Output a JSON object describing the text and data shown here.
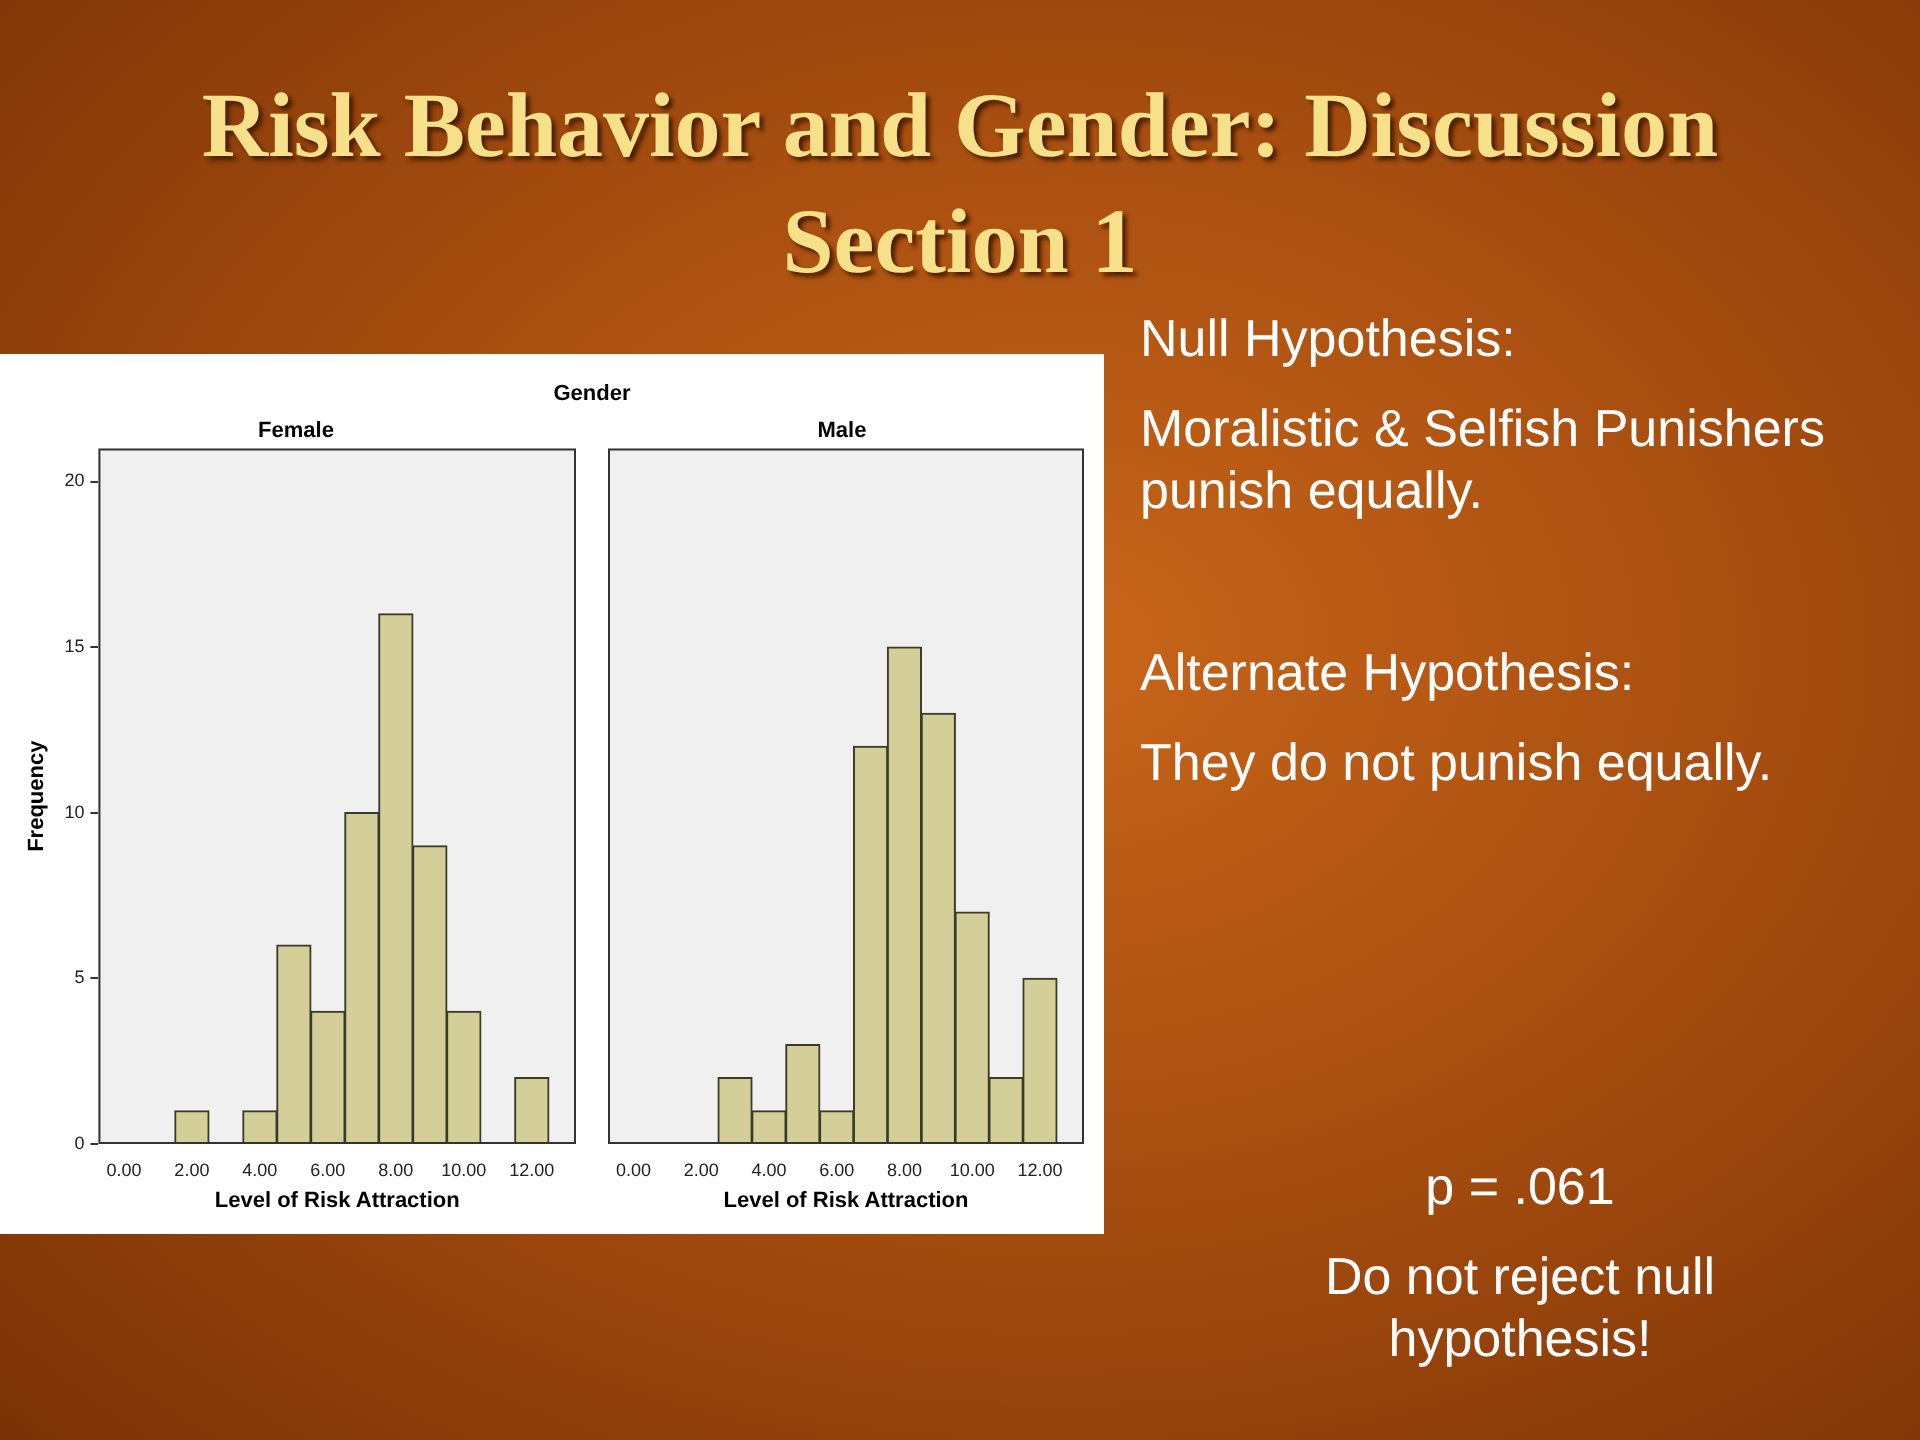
{
  "chart_data": [
    {
      "type": "histogram",
      "subtitle": "Gender",
      "title": "Female",
      "xlabel": "Level of Risk Attraction",
      "ylabel": "Frequency",
      "color": "#d4cf98",
      "bins": [
        1.5,
        2.5,
        3.5,
        4.5,
        5.5,
        6.5,
        7.5,
        8.5,
        9.5,
        10.5,
        11.5,
        12.5
      ],
      "values": [
        1,
        0,
        1,
        6,
        4,
        10,
        16,
        9,
        4,
        0,
        2
      ],
      "xlim": [
        -0.75,
        13.3
      ],
      "xticks": [
        {
          "value": 0,
          "label": "0.00"
        },
        {
          "value": 2,
          "label": "2.00"
        },
        {
          "value": 4,
          "label": "4.00"
        },
        {
          "value": 6,
          "label": "6.00"
        },
        {
          "value": 8,
          "label": "8.00"
        },
        {
          "value": 10,
          "label": "10.00"
        },
        {
          "value": 12,
          "label": "12.00"
        }
      ],
      "ylim": [
        0,
        21
      ],
      "yticks": [
        0,
        5,
        10,
        15,
        20
      ]
    },
    {
      "type": "histogram",
      "title": "Male",
      "xlabel": "Level of Risk Attraction",
      "color": "#d4cf98",
      "bins": [
        2.5,
        3.5,
        4.5,
        5.5,
        6.5,
        7.5,
        8.5,
        9.5,
        10.5,
        11.5,
        12.5
      ],
      "values": [
        2,
        1,
        3,
        1,
        12,
        15,
        13,
        7,
        2,
        5
      ],
      "xlim": [
        -0.75,
        13.3
      ],
      "xticks": [
        {
          "value": 0,
          "label": "0.00"
        },
        {
          "value": 2,
          "label": "2.00"
        },
        {
          "value": 4,
          "label": "4.00"
        },
        {
          "value": 6,
          "label": "6.00"
        },
        {
          "value": 8,
          "label": "8.00"
        },
        {
          "value": 10,
          "label": "10.00"
        },
        {
          "value": 12,
          "label": "12.00"
        }
      ],
      "ylim": [
        0,
        21
      ],
      "yticks": [
        0,
        5,
        10,
        15,
        20
      ],
      "tick_labels": "x"
    },
    {
      "type": "other",
      "title": "Risk Behavior and Gender: Discussion Section 1",
      "annotations": [
        "Null Hypothesis:",
        "Moralistic & Selfish Punishers punish equally.",
        "Alternate Hypothesis:",
        "They do not punish equally.",
        "p = .061",
        "Do not reject null hypothesis!"
      ]
    }
  ]
}
